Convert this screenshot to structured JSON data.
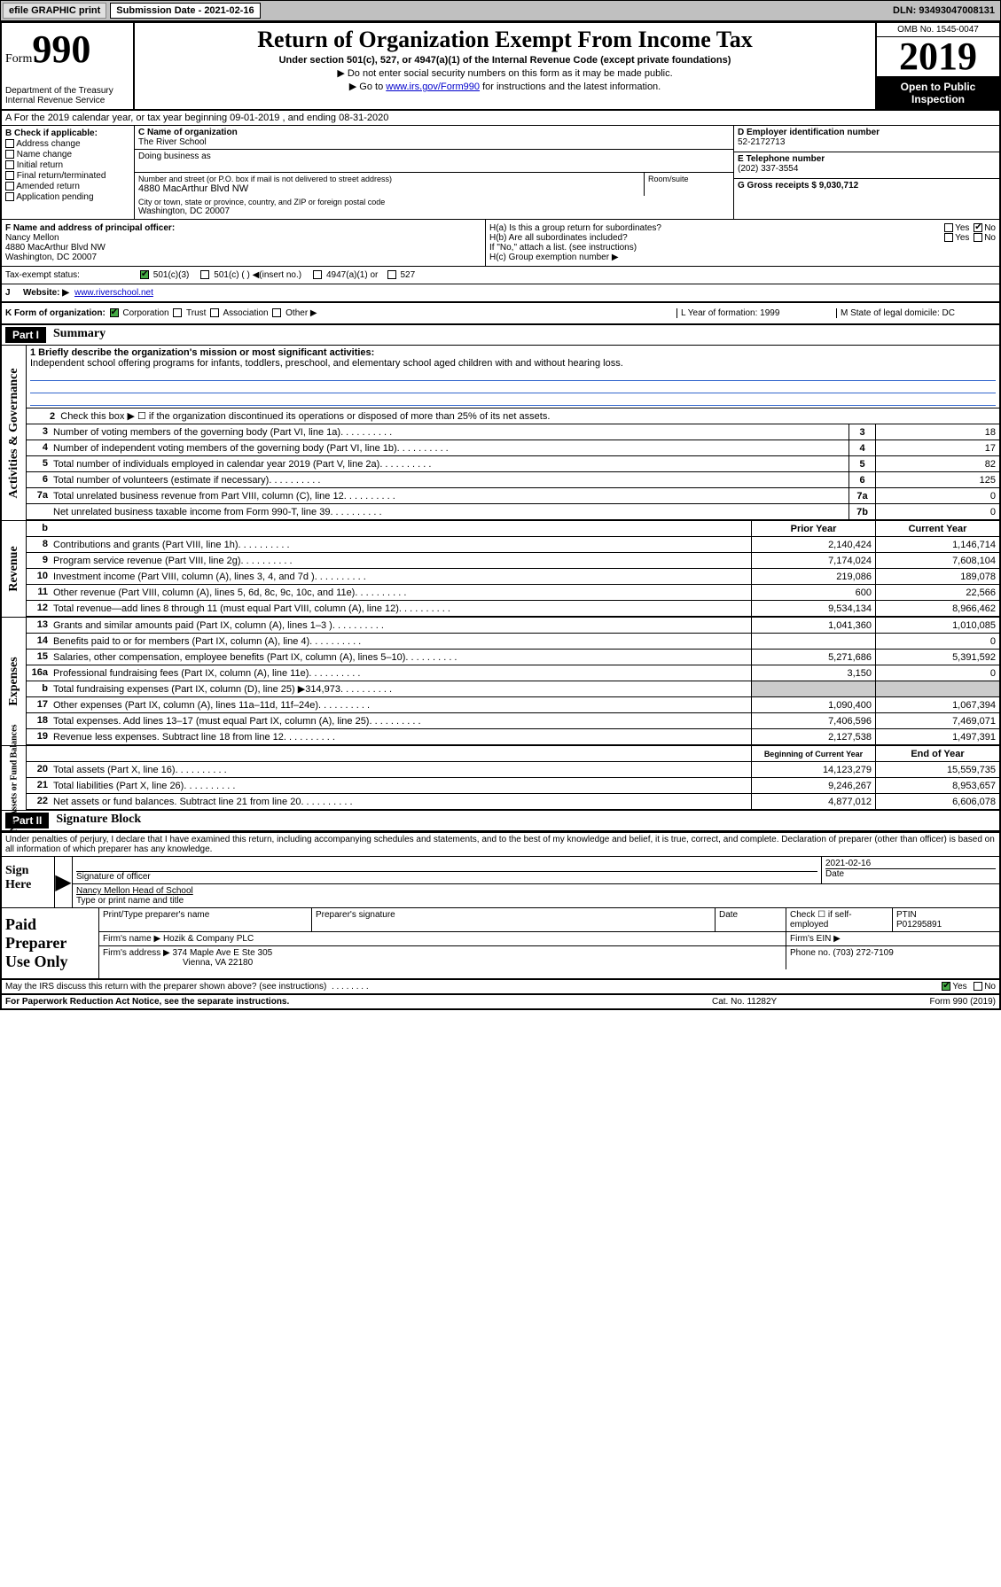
{
  "topbar": {
    "efile": "efile GRAPHIC print",
    "sub_label": "Submission Date - 2021-02-16",
    "dln": "DLN: 93493047008131"
  },
  "header": {
    "form_prefix": "Form",
    "form_num": "990",
    "dept": "Department of the Treasury\nInternal Revenue Service",
    "title": "Return of Organization Exempt From Income Tax",
    "subtitle": "Under section 501(c), 527, or 4947(a)(1) of the Internal Revenue Code (except private foundations)",
    "note1": "▶ Do not enter social security numbers on this form as it may be made public.",
    "note2_pre": "▶ Go to ",
    "note2_link": "www.irs.gov/Form990",
    "note2_post": " for instructions and the latest information.",
    "omb": "OMB No. 1545-0047",
    "year": "2019",
    "inspect": "Open to Public Inspection"
  },
  "row_a": "A  For the 2019 calendar year, or tax year beginning 09-01-2019   , and ending 08-31-2020",
  "section_b": {
    "label": "B Check if applicable:",
    "items": [
      "Address change",
      "Name change",
      "Initial return",
      "Final return/terminated",
      "Amended return",
      "Application pending"
    ]
  },
  "section_c": {
    "name_label": "C Name of organization",
    "name": "The River School",
    "dba_label": "Doing business as",
    "dba": "",
    "street_label": "Number and street (or P.O. box if mail is not delivered to street address)",
    "street": "4880 MacArthur Blvd NW",
    "room_label": "Room/suite",
    "city_label": "City or town, state or province, country, and ZIP or foreign postal code",
    "city": "Washington, DC  20007"
  },
  "section_d": {
    "label": "D Employer identification number",
    "ein": "52-2172713"
  },
  "section_e": {
    "label": "E Telephone number",
    "phone": "(202) 337-3554"
  },
  "section_g": {
    "label": "G Gross receipts $ 9,030,712"
  },
  "section_f": {
    "label": "F Name and address of principal officer:",
    "name": "Nancy Mellon",
    "addr1": "4880 MacArthur Blvd NW",
    "addr2": "Washington, DC  20007"
  },
  "section_h": {
    "ha": "H(a)  Is this a group return for subordinates?",
    "ha_yes": "Yes",
    "ha_no": "No",
    "hb": "H(b)  Are all subordinates included?",
    "hb_yes": "Yes",
    "hb_no": "No",
    "hb_note": "If \"No,\" attach a list. (see instructions)",
    "hc": "H(c)  Group exemption number ▶"
  },
  "tax_status": {
    "label": "Tax-exempt status:",
    "c3": "501(c)(3)",
    "c_other": "501(c) (  ) ◀(insert no.)",
    "a1": "4947(a)(1) or",
    "s527": "527"
  },
  "website": {
    "label_j": "J",
    "label": "Website: ▶",
    "url": "www.riverschool.net"
  },
  "row_k": {
    "label": "K Form of organization:",
    "corp": "Corporation",
    "trust": "Trust",
    "assoc": "Association",
    "other": "Other ▶",
    "l_label": "L Year of formation: 1999",
    "m_label": "M State of legal domicile: DC"
  },
  "part1": {
    "hdr": "Part I",
    "title": "Summary"
  },
  "summary": {
    "l1_label": "1  Briefly describe the organization's mission or most significant activities:",
    "l1_text": "Independent school offering programs for infants, toddlers, preschool, and elementary school aged children with and without hearing loss.",
    "l2": "Check this box ▶ ☐  if the organization discontinued its operations or disposed of more than 25% of its net assets.",
    "lines_gov": [
      {
        "n": "3",
        "d": "Number of voting members of the governing body (Part VI, line 1a)",
        "b": "3",
        "v": "18"
      },
      {
        "n": "4",
        "d": "Number of independent voting members of the governing body (Part VI, line 1b)",
        "b": "4",
        "v": "17"
      },
      {
        "n": "5",
        "d": "Total number of individuals employed in calendar year 2019 (Part V, line 2a)",
        "b": "5",
        "v": "82"
      },
      {
        "n": "6",
        "d": "Total number of volunteers (estimate if necessary)",
        "b": "6",
        "v": "125"
      },
      {
        "n": "7a",
        "d": "Total unrelated business revenue from Part VIII, column (C), line 12",
        "b": "7a",
        "v": "0"
      },
      {
        "n": "",
        "d": "Net unrelated business taxable income from Form 990-T, line 39",
        "b": "7b",
        "v": "0"
      }
    ],
    "col_hdrs": {
      "n": "b",
      "prior": "Prior Year",
      "current": "Current Year"
    },
    "lines_rev": [
      {
        "n": "8",
        "d": "Contributions and grants (Part VIII, line 1h)",
        "p": "2,140,424",
        "c": "1,146,714"
      },
      {
        "n": "9",
        "d": "Program service revenue (Part VIII, line 2g)",
        "p": "7,174,024",
        "c": "7,608,104"
      },
      {
        "n": "10",
        "d": "Investment income (Part VIII, column (A), lines 3, 4, and 7d )",
        "p": "219,086",
        "c": "189,078"
      },
      {
        "n": "11",
        "d": "Other revenue (Part VIII, column (A), lines 5, 6d, 8c, 9c, 10c, and 11e)",
        "p": "600",
        "c": "22,566"
      },
      {
        "n": "12",
        "d": "Total revenue—add lines 8 through 11 (must equal Part VIII, column (A), line 12)",
        "p": "9,534,134",
        "c": "8,966,462"
      }
    ],
    "lines_exp": [
      {
        "n": "13",
        "d": "Grants and similar amounts paid (Part IX, column (A), lines 1–3 )",
        "p": "1,041,360",
        "c": "1,010,085"
      },
      {
        "n": "14",
        "d": "Benefits paid to or for members (Part IX, column (A), line 4)",
        "p": "",
        "c": "0"
      },
      {
        "n": "15",
        "d": "Salaries, other compensation, employee benefits (Part IX, column (A), lines 5–10)",
        "p": "5,271,686",
        "c": "5,391,592"
      },
      {
        "n": "16a",
        "d": "Professional fundraising fees (Part IX, column (A), line 11e)",
        "p": "3,150",
        "c": "0"
      },
      {
        "n": "b",
        "d": "Total fundraising expenses (Part IX, column (D), line 25) ▶314,973",
        "p": "",
        "c": ""
      },
      {
        "n": "17",
        "d": "Other expenses (Part IX, column (A), lines 11a–11d, 11f–24e)",
        "p": "1,090,400",
        "c": "1,067,394"
      },
      {
        "n": "18",
        "d": "Total expenses. Add lines 13–17 (must equal Part IX, column (A), line 25)",
        "p": "7,406,596",
        "c": "7,469,071"
      },
      {
        "n": "19",
        "d": "Revenue less expenses. Subtract line 18 from line 12",
        "p": "2,127,538",
        "c": "1,497,391"
      }
    ],
    "na_hdrs": {
      "prior": "Beginning of Current Year",
      "current": "End of Year"
    },
    "lines_na": [
      {
        "n": "20",
        "d": "Total assets (Part X, line 16)",
        "p": "14,123,279",
        "c": "15,559,735"
      },
      {
        "n": "21",
        "d": "Total liabilities (Part X, line 26)",
        "p": "9,246,267",
        "c": "8,953,657"
      },
      {
        "n": "22",
        "d": "Net assets or fund balances. Subtract line 21 from line 20",
        "p": "4,877,012",
        "c": "6,606,078"
      }
    ],
    "side_gov": "Activities & Governance",
    "side_rev": "Revenue",
    "side_exp": "Expenses",
    "side_na": "Net Assets or Fund Balances"
  },
  "part2": {
    "hdr": "Part II",
    "title": "Signature Block"
  },
  "sig": {
    "declare": "Under penalties of perjury, I declare that I have examined this return, including accompanying schedules and statements, and to the best of my knowledge and belief, it is true, correct, and complete. Declaration of preparer (other than officer) is based on all information of which preparer has any knowledge.",
    "sign_here": "Sign Here",
    "sig_officer": "Signature of officer",
    "date": "2021-02-16",
    "date_lab": "Date",
    "name_title": "Nancy Mellon Head of School",
    "name_title_lab": "Type or print name and title"
  },
  "paid": {
    "lab": "Paid Preparer Use Only",
    "prep_name_lab": "Print/Type preparer's name",
    "prep_sig_lab": "Preparer's signature",
    "date_lab": "Date",
    "self_emp": "Check ☐ if self-employed",
    "ptin_lab": "PTIN",
    "ptin": "P01295891",
    "firm_name_lab": "Firm's name    ▶",
    "firm_name": "Hozik & Company PLC",
    "firm_ein_lab": "Firm's EIN ▶",
    "firm_addr_lab": "Firm's address ▶",
    "firm_addr1": "374 Maple Ave E Ste 305",
    "firm_addr2": "Vienna, VA  22180",
    "phone_lab": "Phone no. (703) 272-7109"
  },
  "discuss": {
    "q": "May the IRS discuss this return with the preparer shown above? (see instructions)",
    "yes": "Yes",
    "no": "No"
  },
  "footer": {
    "left": "For Paperwork Reduction Act Notice, see the separate instructions.",
    "mid": "Cat. No. 11282Y",
    "right": "Form 990 (2019)"
  }
}
